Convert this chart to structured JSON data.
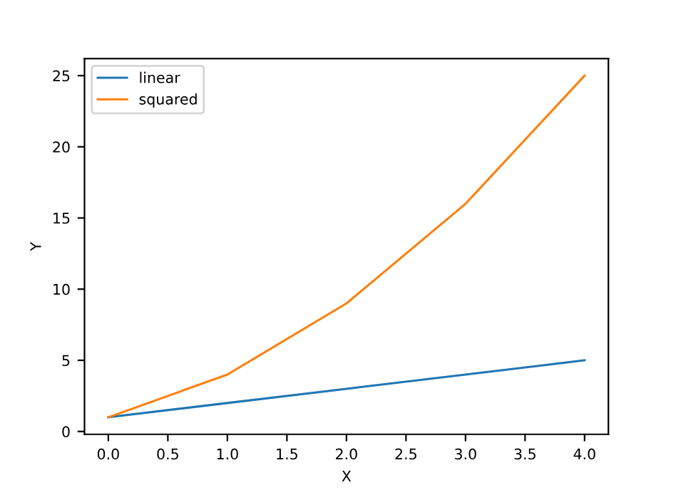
{
  "chart_data": {
    "type": "line",
    "xlabel": "X",
    "ylabel": "Y",
    "x": [
      0,
      1,
      2,
      3,
      4
    ],
    "series": [
      {
        "name": "linear",
        "color": "#1f77b4",
        "values": [
          1,
          2,
          3,
          4,
          5
        ]
      },
      {
        "name": "squared",
        "color": "#ff7f0e",
        "values": [
          1,
          4,
          9,
          16,
          25
        ]
      }
    ],
    "xlim": [
      -0.2,
      4.2
    ],
    "ylim": [
      -0.2,
      26.2
    ],
    "xticks": [
      {
        "value": 0,
        "label": "0.0"
      },
      {
        "value": 0.5,
        "label": "0.5"
      },
      {
        "value": 1,
        "label": "1.0"
      },
      {
        "value": 1.5,
        "label": "1.5"
      },
      {
        "value": 2,
        "label": "2.0"
      },
      {
        "value": 2.5,
        "label": "2.5"
      },
      {
        "value": 3,
        "label": "3.0"
      },
      {
        "value": 3.5,
        "label": "3.5"
      },
      {
        "value": 4,
        "label": "4.0"
      }
    ],
    "yticks": [
      0,
      5,
      10,
      15,
      20,
      25
    ],
    "legend": "top left",
    "grid": false,
    "marker": "none",
    "line_style": "solid"
  }
}
